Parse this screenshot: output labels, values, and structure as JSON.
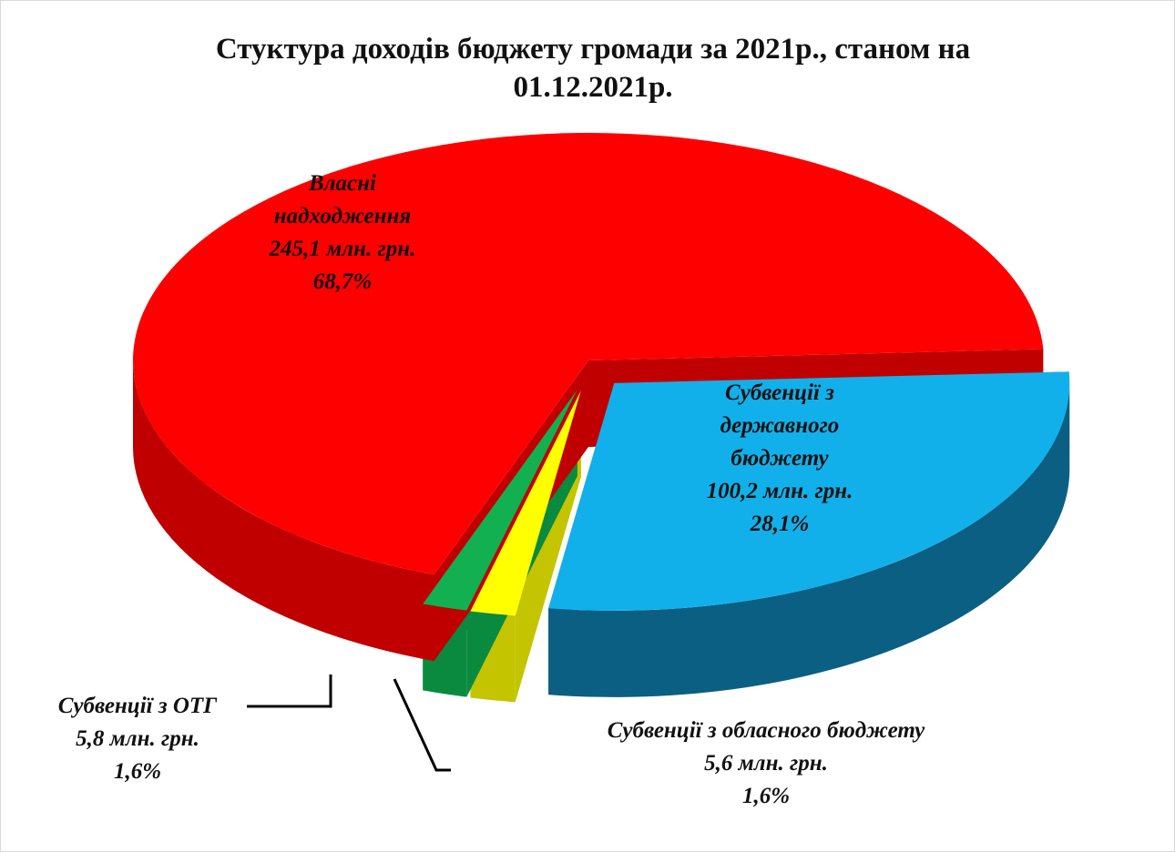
{
  "chart_data": {
    "type": "pie3d",
    "title": "Стуктура доходів бюджету громади за 2021р., станом на 01.12.2021р.",
    "categories": [
      "Субвенції з державного бюджету",
      "Субвенції з обласного бюджету",
      "Субвенції з ОТГ",
      "Власні надходження"
    ],
    "values": [
      28.1,
      1.6,
      1.6,
      68.7
    ],
    "value_labels": [
      "28,1%",
      "1,6%",
      "1,6%",
      "68,7%"
    ],
    "amounts": [
      100.2,
      5.6,
      5.8,
      245.1
    ],
    "amount_labels": [
      "100,2 млн. грн.",
      "5,6 млн. грн.",
      "5,8 млн. грн.",
      "245,1 млн. грн."
    ],
    "colors": [
      "#12b0ea",
      "#ffff00",
      "#12b050",
      "#ff0000"
    ],
    "side_colors": [
      "#0b5f82",
      "#c4c400",
      "#0a8a3e",
      "#c00000"
    ]
  }
}
